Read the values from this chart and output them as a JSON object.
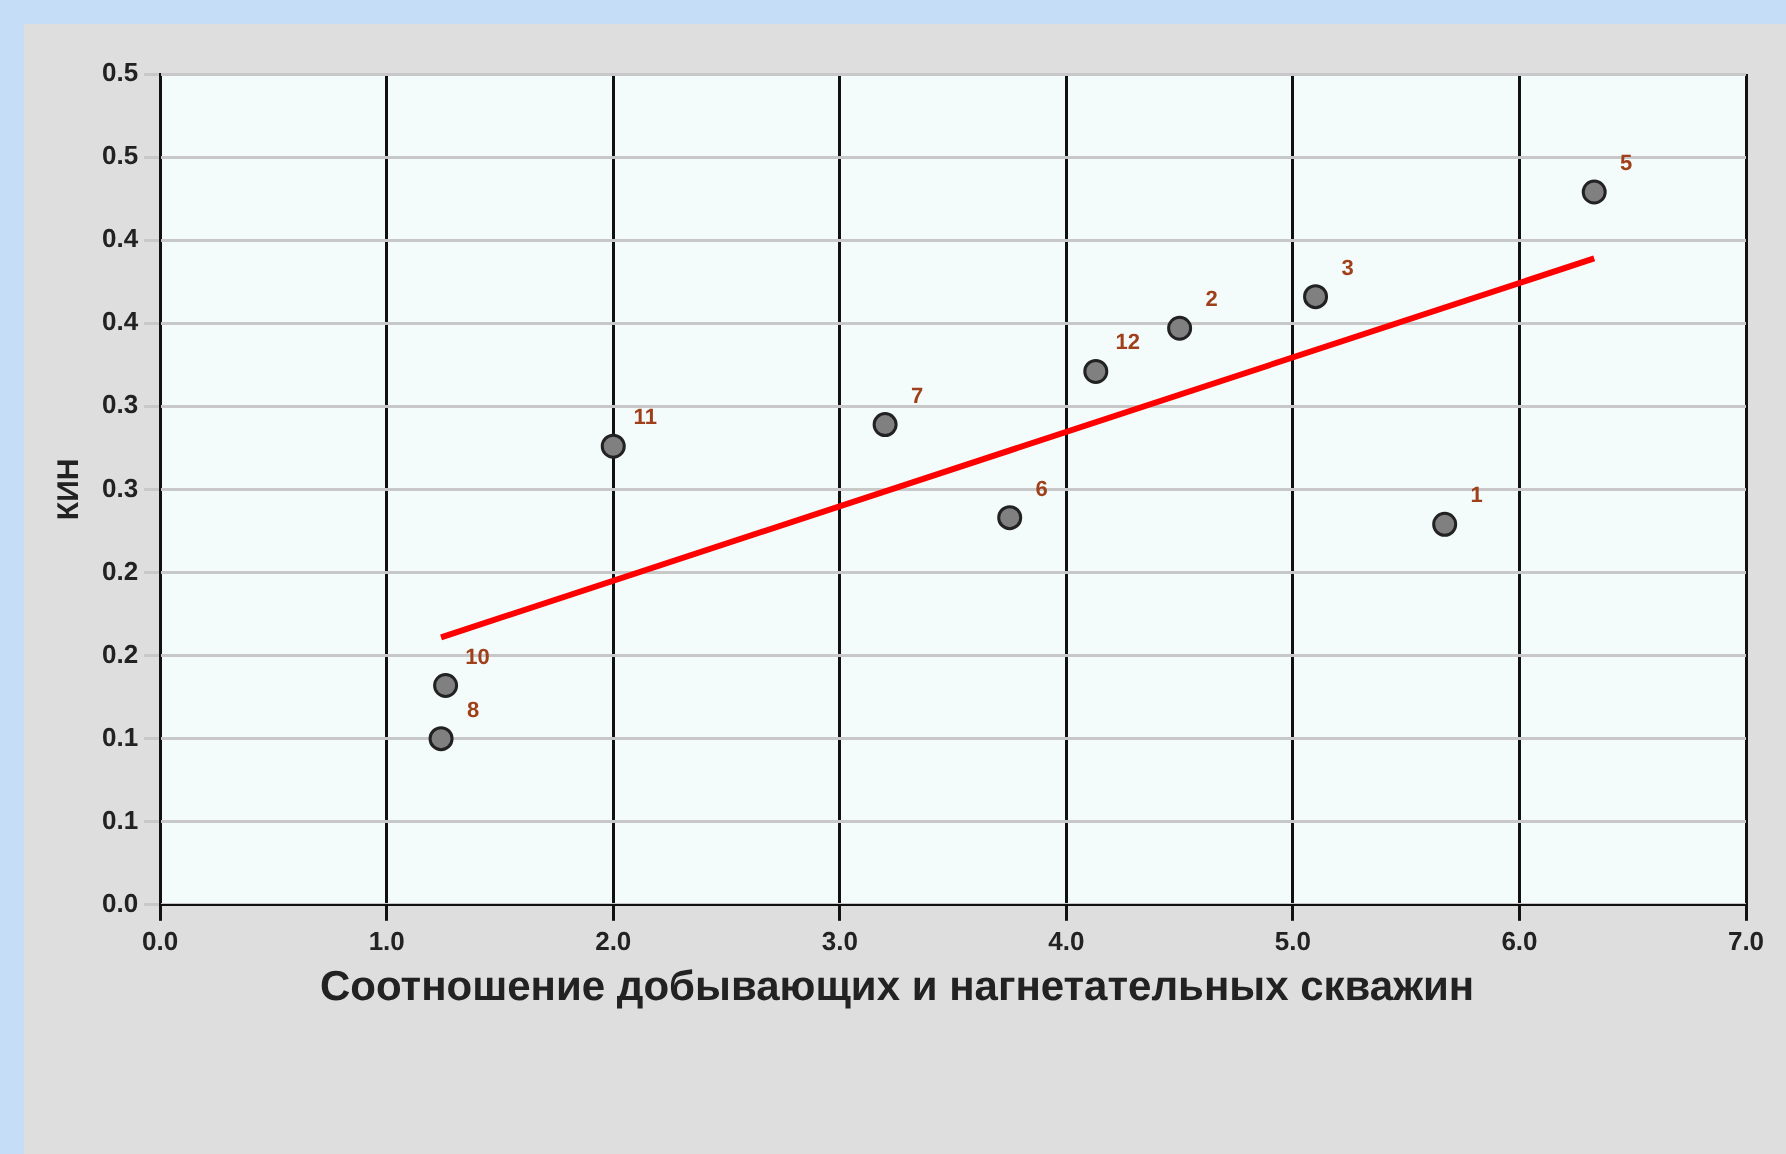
{
  "chart_data": {
    "type": "scatter",
    "xlabel": "Соотношение добывающих и нагнетательных скважин",
    "ylabel": "КИН",
    "x": [
      1.24,
      1.26,
      2.0,
      3.2,
      3.75,
      4.13,
      4.5,
      5.1,
      5.67,
      6.33
    ],
    "series": [
      {
        "type": "scatter",
        "color": "#808080",
        "values": [
          0.1,
          0.132,
          0.276,
          0.289,
          0.233,
          0.321,
          0.347,
          0.366,
          0.229,
          0.429
        ]
      },
      {
        "type": "line",
        "color": "#ff0000",
        "x": [
          1.24,
          6.33
        ],
        "values": [
          0.161,
          0.389
        ]
      }
    ],
    "xlim": [
      0,
      7
    ],
    "xticks": [
      {
        "value": 0,
        "label": "0.0"
      },
      {
        "value": 1,
        "label": "1.0"
      },
      {
        "value": 2,
        "label": "2.0"
      },
      {
        "value": 3,
        "label": "3.0"
      },
      {
        "value": 4,
        "label": "4.0"
      },
      {
        "value": 5,
        "label": "5.0"
      },
      {
        "value": 6,
        "label": "6.0"
      },
      {
        "value": 7,
        "label": "7.0"
      }
    ],
    "ylim": [
      0,
      0.5
    ],
    "yticks": [
      {
        "value": 0,
        "label": "0.0"
      },
      {
        "value": 0.05,
        "label": "0.1"
      },
      {
        "value": 0.1,
        "label": "0.1"
      },
      {
        "value": 0.15,
        "label": "0.2"
      },
      {
        "value": 0.2,
        "label": "0.2"
      },
      {
        "value": 0.25,
        "label": "0.3"
      },
      {
        "value": 0.3,
        "label": "0.3"
      },
      {
        "value": 0.35,
        "label": "0.4"
      },
      {
        "value": 0.4,
        "label": "0.4"
      },
      {
        "value": 0.45,
        "label": "0.5"
      },
      {
        "value": 0.5,
        "label": "0.5"
      }
    ],
    "annotations": [
      {
        "text": "8",
        "x": 1.24,
        "y": 0.1
      },
      {
        "text": "10",
        "x": 1.26,
        "y": 0.132
      },
      {
        "text": "11",
        "x": 2.0,
        "y": 0.276
      },
      {
        "text": "7",
        "x": 3.2,
        "y": 0.289
      },
      {
        "text": "6",
        "x": 3.75,
        "y": 0.233
      },
      {
        "text": "12",
        "x": 4.13,
        "y": 0.321
      },
      {
        "text": "2",
        "x": 4.5,
        "y": 0.347
      },
      {
        "text": "3",
        "x": 5.1,
        "y": 0.366
      },
      {
        "text": "1",
        "x": 5.67,
        "y": 0.229
      },
      {
        "text": "5",
        "x": 6.33,
        "y": 0.429
      }
    ],
    "grid": true,
    "legend": false
  }
}
